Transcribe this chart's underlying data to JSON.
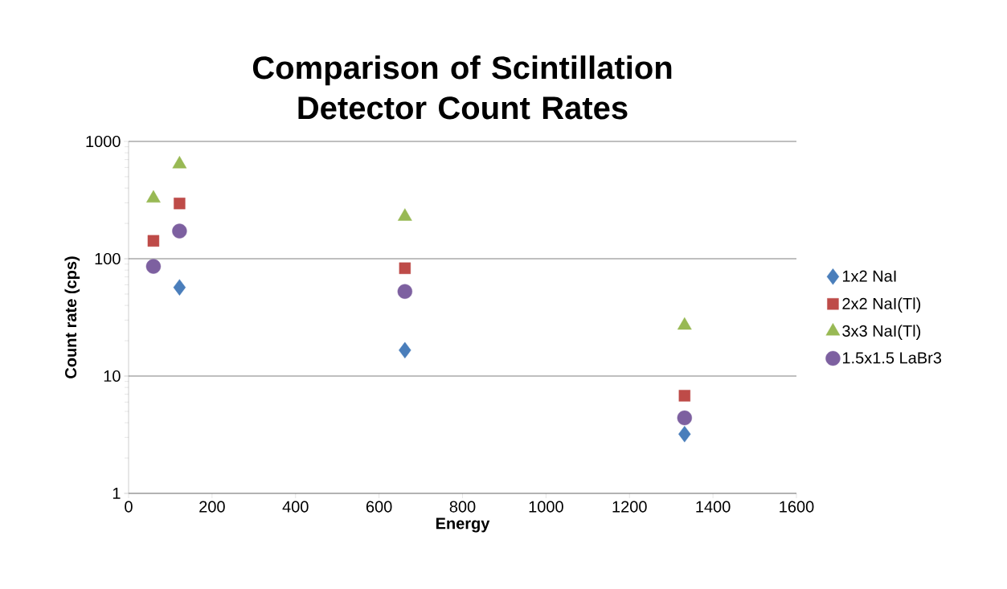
{
  "chart_data": {
    "type": "scatter",
    "title": "Comparison of Scintillation Detector Count Rates",
    "xlabel": "Energy",
    "ylabel": "Count rate (cps)",
    "log": "y",
    "grid": "y",
    "legend": "right",
    "xlim": [
      0,
      1600
    ],
    "xticks": [
      0,
      200,
      400,
      600,
      800,
      1000,
      1200,
      1400,
      1600
    ],
    "ylim": [
      1,
      1000
    ],
    "yticks": [
      1,
      10,
      100,
      1000
    ],
    "series": [
      {
        "name": "1x2 NaI",
        "color": "#4a7ebb",
        "marker": "diamond",
        "x": [
          122,
          662,
          1332
        ],
        "values": [
          57,
          16.6,
          3.2
        ]
      },
      {
        "name": "2x2 NaI(Tl)",
        "color": "#be4b48",
        "marker": "square",
        "x": [
          59.5,
          122,
          662,
          1332
        ],
        "values": [
          142,
          296,
          83,
          6.8
        ]
      },
      {
        "name": "3x3 NaI(Tl)",
        "color": "#98b954",
        "marker": "triangle",
        "x": [
          59.5,
          122,
          662,
          1332
        ],
        "values": [
          327,
          640,
          229,
          27
        ]
      },
      {
        "name": "1.5x1.5 LaBr3",
        "color": "#7d60a0",
        "marker": "circle",
        "x": [
          59.5,
          122,
          662,
          1332
        ],
        "values": [
          86,
          172,
          52.6,
          4.4
        ]
      }
    ]
  }
}
